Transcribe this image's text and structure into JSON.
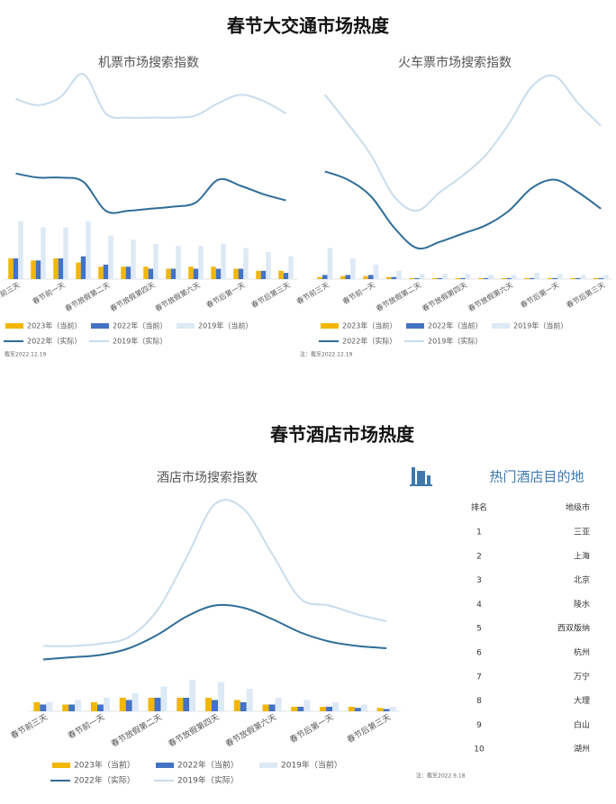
{
  "sections": [
    "春节大交通市场热度",
    "春节酒店市场热度"
  ],
  "chart_data": [
    {
      "type": "bar",
      "title": "机票市场搜索指数",
      "note": "截至2022.12.19",
      "categories": [
        "春节前三天",
        null,
        "春节前一天",
        null,
        "春节放假第二天",
        null,
        "春节放假第四天",
        null,
        "春节放假第六天",
        null,
        "春节后第一天",
        null,
        "春节后第三天"
      ],
      "ylim": [
        0,
        100
      ],
      "series": [
        {
          "name": "2023年（当前）",
          "type": "bar",
          "color": "#f2b705",
          "values": [
            10,
            9,
            10,
            8,
            6,
            6,
            6,
            5,
            6,
            6,
            5,
            4,
            4
          ]
        },
        {
          "name": "2022年（当前）",
          "type": "bar",
          "color": "#4472c4",
          "values": [
            10,
            9,
            10,
            11,
            7,
            6,
            5,
            5,
            5,
            5,
            5,
            4,
            3
          ]
        },
        {
          "name": "2019年（当前）",
          "type": "bar",
          "color": "#dde9f5",
          "values": [
            28,
            25,
            25,
            28,
            21,
            19,
            17,
            16,
            16,
            17,
            15,
            13,
            11
          ]
        },
        {
          "name": "2022年（实际）",
          "type": "line",
          "color": "#2f6d97",
          "values": [
            51,
            49,
            49,
            47,
            33,
            33,
            34,
            35,
            37,
            48,
            45,
            41,
            38
          ]
        },
        {
          "name": "2019年（实际）",
          "type": "line",
          "color": "#c9dceb",
          "values": [
            87,
            84,
            88,
            99,
            80,
            78,
            78,
            78,
            79,
            85,
            89,
            86,
            80
          ]
        }
      ]
    },
    {
      "type": "bar",
      "title": "火车票市场搜索指数",
      "note": "注：截至2022.12.19",
      "categories": [
        "春节前三天",
        null,
        "春节前一天",
        null,
        "春节放假第二天",
        null,
        "春节放假第四天",
        null,
        "春节放假第六天",
        null,
        "春节后第一天",
        null,
        "春节后第三天"
      ],
      "ylim": [
        0,
        100
      ],
      "series": [
        {
          "name": "2023年（当前）",
          "type": "bar",
          "color": "#f2b705",
          "values": [
            1,
            1.5,
            1.5,
            1,
            0.5,
            0.5,
            0.5,
            0.5,
            0.5,
            0.5,
            0.5,
            0.5,
            0.5
          ]
        },
        {
          "name": "2022年（当前）",
          "type": "bar",
          "color": "#4472c4",
          "values": [
            2,
            2,
            2,
            1,
            0.5,
            0.5,
            0.5,
            0.5,
            0.5,
            0.5,
            0.5,
            0.5,
            0.5
          ]
        },
        {
          "name": "2019年（当前）",
          "type": "bar",
          "color": "#dde9f5",
          "values": [
            15,
            10,
            7,
            4,
            2.5,
            2.5,
            2.5,
            2,
            2,
            3,
            2.5,
            2,
            2
          ]
        },
        {
          "name": "2022年（实际）",
          "type": "line",
          "color": "#2f6d97",
          "values": [
            52,
            48,
            40,
            25,
            15,
            18,
            22,
            26,
            33,
            44,
            48,
            42,
            34
          ]
        },
        {
          "name": "2019年（实际）",
          "type": "line",
          "color": "#c9dceb",
          "values": [
            89,
            75,
            60,
            40,
            33,
            42,
            50,
            60,
            75,
            93,
            98,
            85,
            74
          ]
        }
      ]
    },
    {
      "type": "bar",
      "title": "酒店市场搜索指数",
      "categories": [
        "春节前三天",
        null,
        "春节前一天",
        null,
        "春节放假第二天",
        null,
        "春节放假第四天",
        null,
        "春节放假第六天",
        null,
        "春节后第一天",
        null,
        "春节后第三天"
      ],
      "ylim": [
        0,
        100
      ],
      "series": [
        {
          "name": "2023年（当前）",
          "type": "bar",
          "color": "#f2b705",
          "values": [
            4,
            3,
            4,
            6,
            6,
            6,
            6,
            5,
            3,
            2,
            2,
            2,
            1.5
          ]
        },
        {
          "name": "2022年（当前）",
          "type": "bar",
          "color": "#4472c4",
          "values": [
            3,
            3,
            3,
            5,
            6,
            6,
            5,
            4,
            3,
            2,
            2,
            1.5,
            1
          ]
        },
        {
          "name": "2019年（当前）",
          "type": "bar",
          "color": "#dde9f5",
          "values": [
            4,
            5,
            6,
            8,
            11,
            14,
            13,
            10,
            6,
            5,
            4,
            3,
            2
          ]
        },
        {
          "name": "2022年（实际）",
          "type": "line",
          "color": "#2f6d97",
          "values": [
            23,
            24,
            25,
            28,
            34,
            42,
            47,
            46,
            41,
            35,
            31,
            29,
            28
          ]
        },
        {
          "name": "2019年（实际）",
          "type": "line",
          "color": "#c9dceb",
          "values": [
            29,
            29,
            30,
            33,
            45,
            68,
            92,
            90,
            70,
            50,
            47,
            43,
            40
          ]
        }
      ]
    }
  ],
  "table": {
    "title": "热门酒店目的地",
    "columns": [
      "排名",
      "地级市"
    ],
    "rows": [
      [
        1,
        "三亚"
      ],
      [
        2,
        "上海"
      ],
      [
        3,
        "北京"
      ],
      [
        4,
        "陵水"
      ],
      [
        5,
        "西双版纳"
      ],
      [
        6,
        "杭州"
      ],
      [
        7,
        "万宁"
      ],
      [
        8,
        "大理"
      ],
      [
        9,
        "白山"
      ],
      [
        10,
        "湖州"
      ]
    ],
    "note": "注：截至2022.9.18"
  }
}
